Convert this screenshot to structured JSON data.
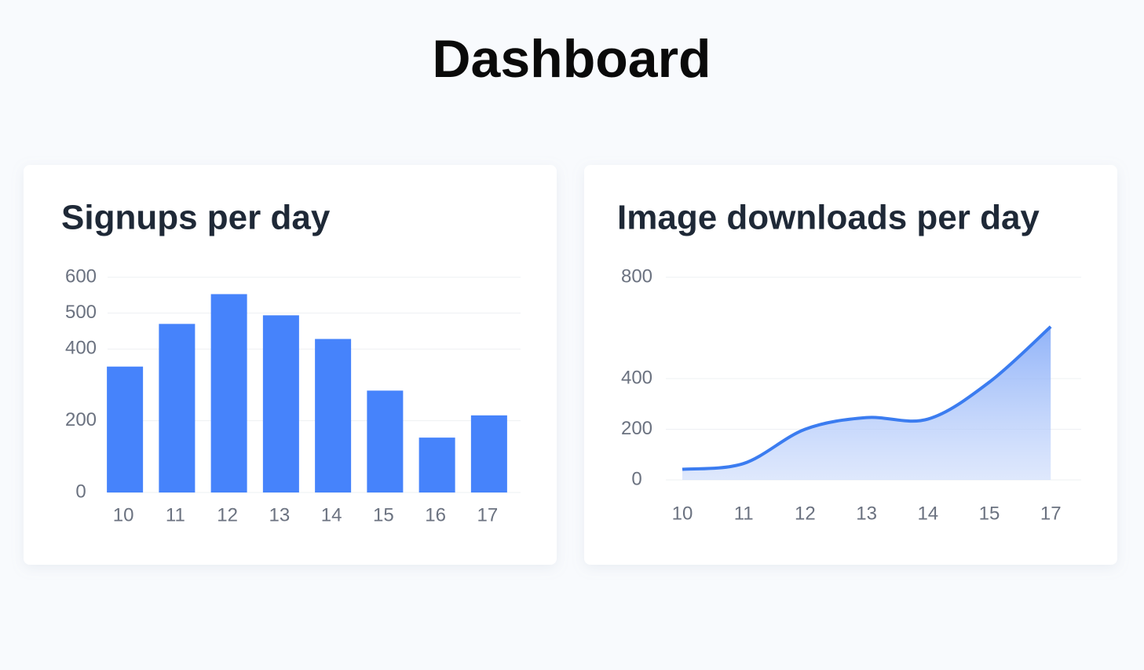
{
  "title": "Dashboard",
  "chart_data": [
    {
      "type": "bar",
      "title": "Signups per day",
      "categories": [
        "10",
        "11",
        "12",
        "13",
        "14",
        "15",
        "16",
        "17"
      ],
      "values": [
        351,
        470,
        553,
        494,
        428,
        284,
        153,
        215
      ],
      "color": "#4683fb",
      "ylim": [
        0,
        600
      ],
      "yticks": [
        0,
        200,
        400,
        500,
        600
      ],
      "grid": true
    },
    {
      "type": "area",
      "title": "Image downloads per day",
      "categories": [
        "10",
        "11",
        "12",
        "13",
        "14",
        "15",
        "17"
      ],
      "values": [
        42,
        65,
        200,
        246,
        240,
        386,
        605
      ],
      "color": "#3b7cf0",
      "ylim": [
        0,
        800
      ],
      "yticks": [
        0,
        200,
        400,
        800
      ],
      "grid": true
    }
  ]
}
